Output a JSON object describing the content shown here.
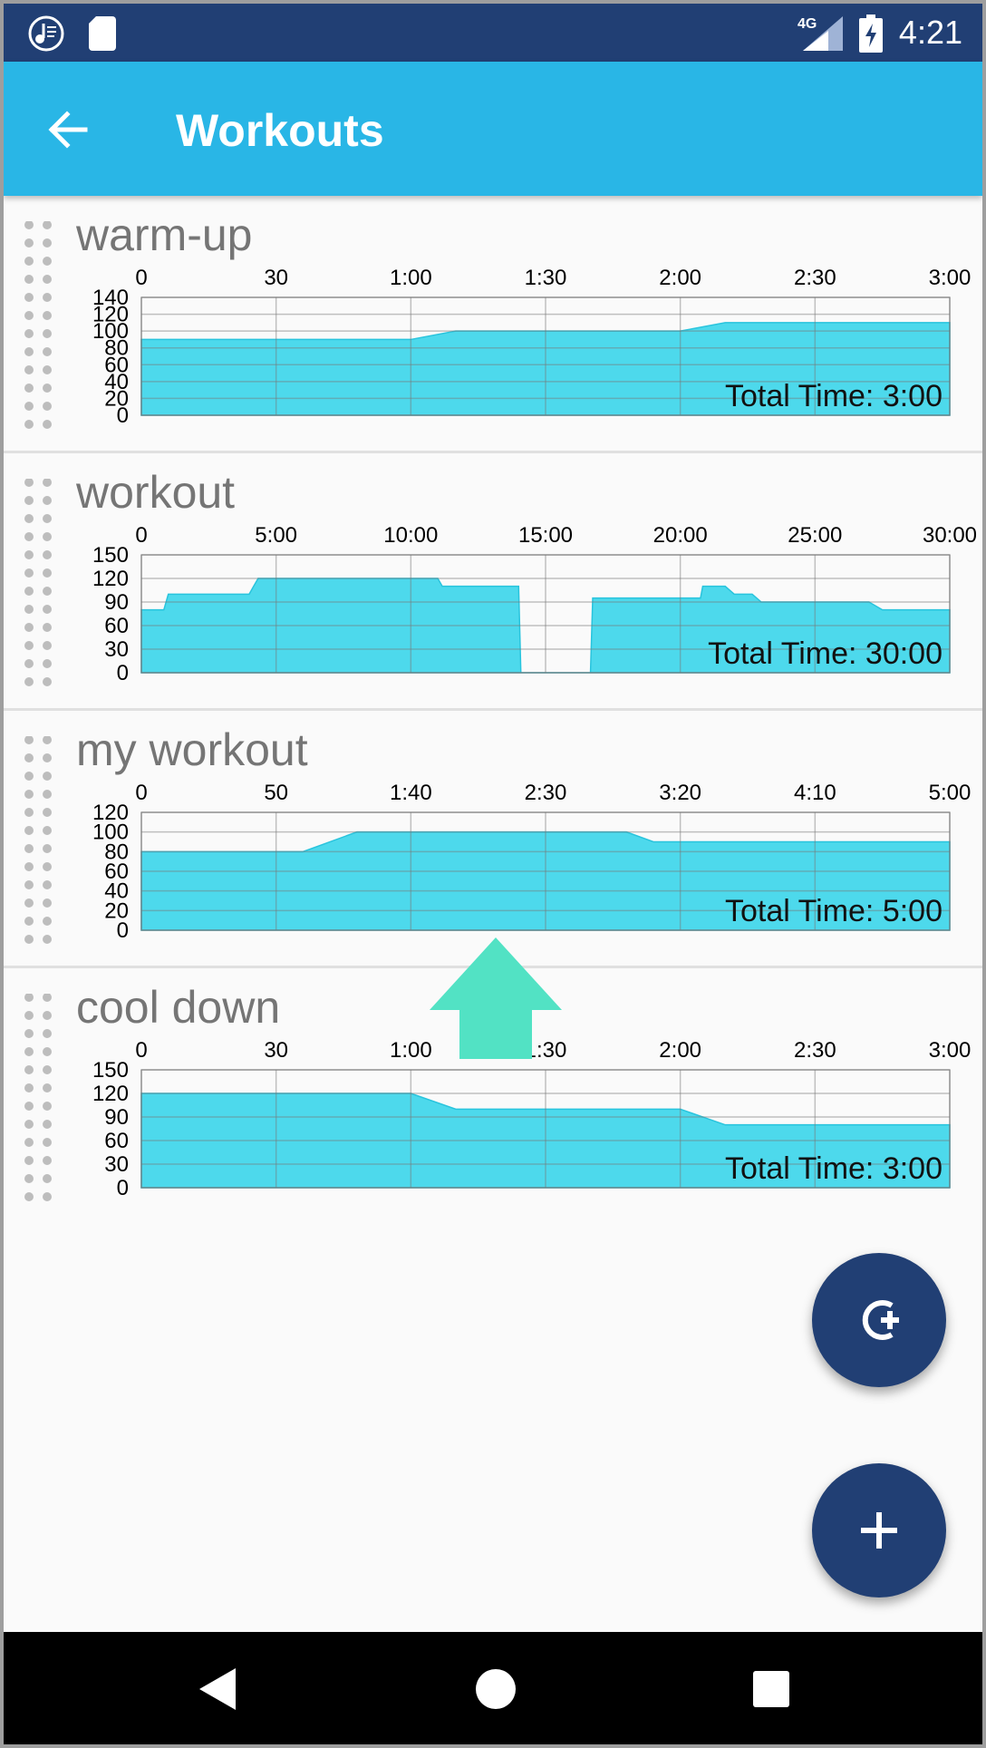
{
  "status_bar": {
    "time": "4:21",
    "network": "4G",
    "icons": [
      "music-notification-icon",
      "sd-card-icon",
      "signal-icon",
      "battery-charging-icon"
    ]
  },
  "app_bar": {
    "title": "Workouts",
    "back_icon": "arrow-back-icon"
  },
  "colors": {
    "status_bar": "#213f74",
    "app_bar": "#29b6e6",
    "chart_fill": "#4dd9ec",
    "fab": "#213f74",
    "arrow": "#52e2c4"
  },
  "workouts": [
    {
      "name": "warm-up",
      "total_time": "Total Time: 3:00"
    },
    {
      "name": "workout",
      "total_time": "Total Time: 30:00"
    },
    {
      "name": "my workout",
      "total_time": "Total Time: 5:00"
    },
    {
      "name": "cool down",
      "total_time": "Total Time: 3:00"
    }
  ],
  "chart_data": [
    {
      "type": "area",
      "title": "",
      "x_tick_labels": [
        "0",
        "30",
        "1:00",
        "1:30",
        "2:00",
        "2:30",
        "3:00"
      ],
      "y_tick_labels": [
        "0",
        "20",
        "40",
        "60",
        "80",
        "100",
        "120",
        "140"
      ],
      "ylim": [
        0,
        140
      ],
      "xlim": [
        0,
        180
      ],
      "x": [
        0,
        60,
        70,
        120,
        130,
        180
      ],
      "y": [
        90,
        90,
        100,
        100,
        110,
        110
      ]
    },
    {
      "type": "area",
      "title": "",
      "x_tick_labels": [
        "0",
        "5:00",
        "10:00",
        "15:00",
        "20:00",
        "25:00",
        "30:00"
      ],
      "y_tick_labels": [
        "0",
        "30",
        "60",
        "90",
        "120",
        "150"
      ],
      "ylim": [
        0,
        150
      ],
      "xlim": [
        0,
        1800
      ],
      "x": [
        0,
        50,
        60,
        240,
        250,
        260,
        660,
        670,
        840,
        845,
        1000,
        1005,
        1140,
        1145,
        1245,
        1250,
        1300,
        1320,
        1340,
        1340,
        1360,
        1380,
        1620,
        1650,
        1800
      ],
      "y": [
        80,
        80,
        100,
        100,
        110,
        120,
        120,
        110,
        110,
        0,
        0,
        95,
        95,
        95,
        95,
        110,
        110,
        100,
        100,
        100,
        100,
        90,
        90,
        80,
        80
      ]
    },
    {
      "type": "area",
      "title": "",
      "x_tick_labels": [
        "0",
        "50",
        "1:40",
        "2:30",
        "3:20",
        "4:10",
        "5:00"
      ],
      "y_tick_labels": [
        "0",
        "20",
        "40",
        "60",
        "80",
        "100",
        "120"
      ],
      "ylim": [
        0,
        120
      ],
      "xlim": [
        0,
        300
      ],
      "x": [
        0,
        60,
        80,
        180,
        190,
        300
      ],
      "y": [
        80,
        80,
        100,
        100,
        90,
        90
      ]
    },
    {
      "type": "area",
      "title": "",
      "x_tick_labels": [
        "0",
        "30",
        "1:00",
        "1:30",
        "2:00",
        "2:30",
        "3:00"
      ],
      "y_tick_labels": [
        "0",
        "30",
        "60",
        "90",
        "120",
        "150"
      ],
      "ylim": [
        0,
        150
      ],
      "xlim": [
        0,
        180
      ],
      "x": [
        0,
        60,
        70,
        120,
        130,
        180
      ],
      "y": [
        120,
        120,
        100,
        100,
        80,
        80
      ]
    }
  ],
  "fabs": [
    {
      "name": "add-repeat",
      "icon": "add-circle-icon"
    },
    {
      "name": "add",
      "icon": "plus-icon"
    }
  ],
  "nav_bar": {
    "icons": [
      "back-triangle-icon",
      "home-circle-icon",
      "recents-square-icon"
    ]
  }
}
